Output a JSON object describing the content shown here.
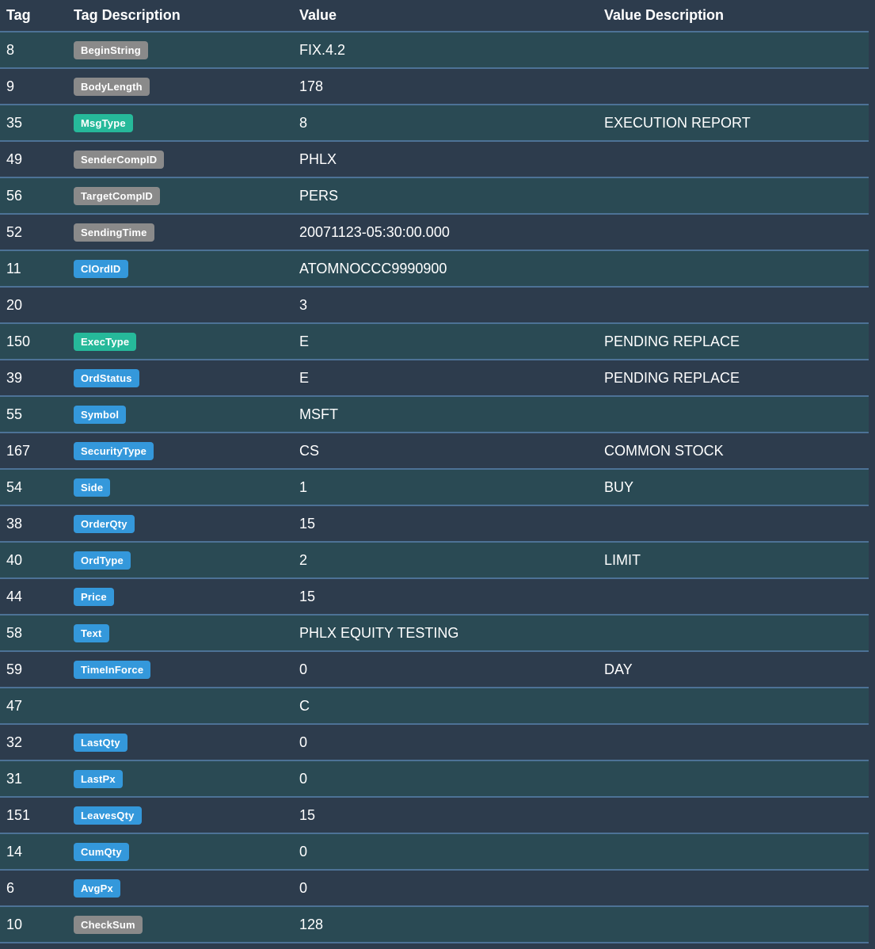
{
  "colors": {
    "page_background": "#2d3c4d",
    "stripe_row_background": "#2a4a54",
    "row_divider": "#4d7296",
    "badge_gray": "#8a8a8a",
    "badge_green": "#26b99a",
    "badge_blue": "#3498db",
    "text": "#ffffff"
  },
  "table": {
    "columns": [
      "Tag",
      "Tag Description",
      "Value",
      "Value Description"
    ],
    "rows": [
      {
        "tag": "8",
        "badge": "BeginString",
        "badge_type": "gray",
        "value": "FIX.4.2",
        "value_description": ""
      },
      {
        "tag": "9",
        "badge": "BodyLength",
        "badge_type": "gray",
        "value": "178",
        "value_description": ""
      },
      {
        "tag": "35",
        "badge": "MsgType",
        "badge_type": "green",
        "value": "8",
        "value_description": "EXECUTION REPORT"
      },
      {
        "tag": "49",
        "badge": "SenderCompID",
        "badge_type": "gray",
        "value": "PHLX",
        "value_description": ""
      },
      {
        "tag": "56",
        "badge": "TargetCompID",
        "badge_type": "gray",
        "value": "PERS",
        "value_description": ""
      },
      {
        "tag": "52",
        "badge": "SendingTime",
        "badge_type": "gray",
        "value": "20071123-05:30:00.000",
        "value_description": ""
      },
      {
        "tag": "11",
        "badge": "ClOrdID",
        "badge_type": "blue",
        "value": "ATOMNOCCC9990900",
        "value_description": ""
      },
      {
        "tag": "20",
        "badge": "",
        "badge_type": "",
        "value": "3",
        "value_description": ""
      },
      {
        "tag": "150",
        "badge": "ExecType",
        "badge_type": "green",
        "value": "E",
        "value_description": "PENDING REPLACE"
      },
      {
        "tag": "39",
        "badge": "OrdStatus",
        "badge_type": "blue",
        "value": "E",
        "value_description": "PENDING REPLACE"
      },
      {
        "tag": "55",
        "badge": "Symbol",
        "badge_type": "blue",
        "value": "MSFT",
        "value_description": ""
      },
      {
        "tag": "167",
        "badge": "SecurityType",
        "badge_type": "blue",
        "value": "CS",
        "value_description": "COMMON STOCK"
      },
      {
        "tag": "54",
        "badge": "Side",
        "badge_type": "blue",
        "value": "1",
        "value_description": "BUY"
      },
      {
        "tag": "38",
        "badge": "OrderQty",
        "badge_type": "blue",
        "value": "15",
        "value_description": ""
      },
      {
        "tag": "40",
        "badge": "OrdType",
        "badge_type": "blue",
        "value": "2",
        "value_description": "LIMIT"
      },
      {
        "tag": "44",
        "badge": "Price",
        "badge_type": "blue",
        "value": "15",
        "value_description": ""
      },
      {
        "tag": "58",
        "badge": "Text",
        "badge_type": "blue",
        "value": "PHLX EQUITY TESTING",
        "value_description": ""
      },
      {
        "tag": "59",
        "badge": "TimeInForce",
        "badge_type": "blue",
        "value": "0",
        "value_description": "DAY"
      },
      {
        "tag": "47",
        "badge": "",
        "badge_type": "",
        "value": "C",
        "value_description": ""
      },
      {
        "tag": "32",
        "badge": "LastQty",
        "badge_type": "blue",
        "value": "0",
        "value_description": ""
      },
      {
        "tag": "31",
        "badge": "LastPx",
        "badge_type": "blue",
        "value": "0",
        "value_description": ""
      },
      {
        "tag": "151",
        "badge": "LeavesQty",
        "badge_type": "blue",
        "value": "15",
        "value_description": ""
      },
      {
        "tag": "14",
        "badge": "CumQty",
        "badge_type": "blue",
        "value": "0",
        "value_description": ""
      },
      {
        "tag": "6",
        "badge": "AvgPx",
        "badge_type": "blue",
        "value": "0",
        "value_description": ""
      },
      {
        "tag": "10",
        "badge": "CheckSum",
        "badge_type": "gray",
        "value": "128",
        "value_description": ""
      }
    ]
  }
}
